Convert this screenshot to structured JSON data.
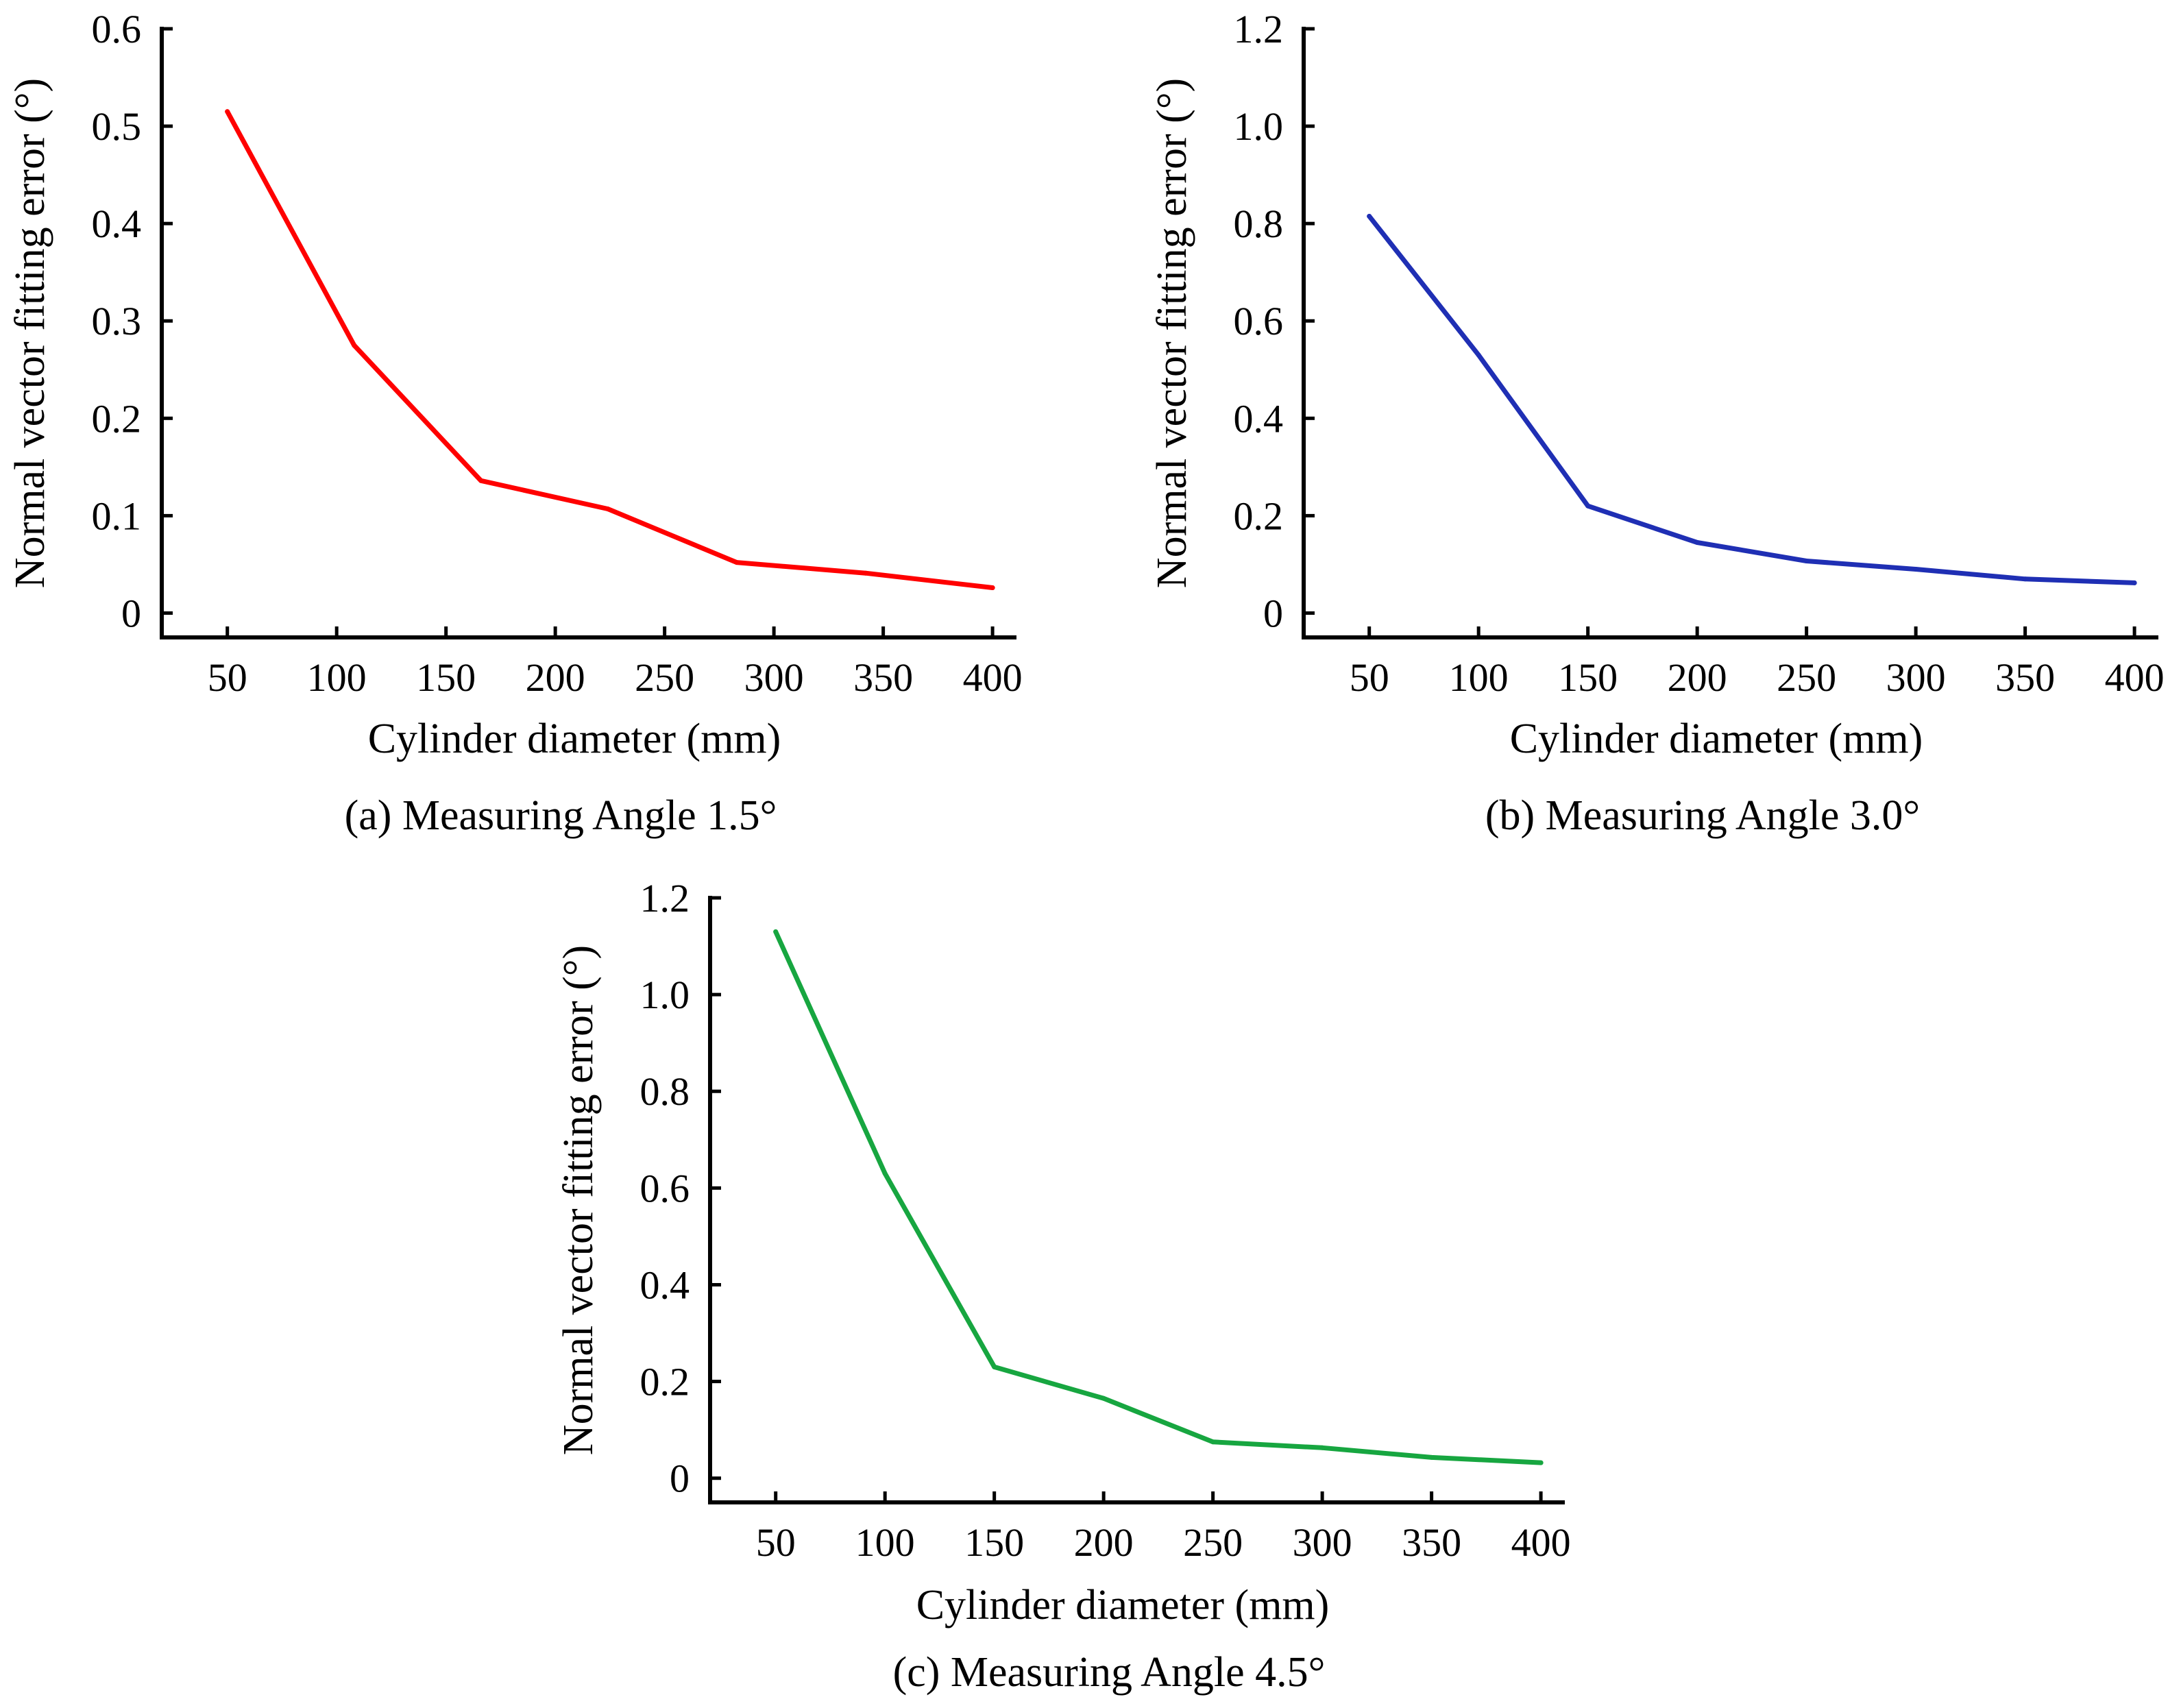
{
  "chart_data": [
    {
      "type": "line",
      "caption": "(a) Measuring Angle 1.5°",
      "xlabel": "Cylinder diameter (mm)",
      "ylabel": "Normal vector fitting error (°)",
      "x": [
        50,
        100,
        150,
        200,
        250,
        300,
        350,
        400
      ],
      "xticks": [
        "50",
        "100",
        "150",
        "200",
        "250",
        "300",
        "350",
        "400"
      ],
      "xlim": [
        20,
        410
      ],
      "yticks": [
        0,
        0.1,
        0.2,
        0.3,
        0.4,
        0.5,
        0.6
      ],
      "ytick_labels": [
        "0",
        "0.1",
        "0.2",
        "0.3",
        "0.4",
        "0.5",
        "0.6"
      ],
      "ylim": [
        -0.025,
        0.6
      ],
      "grid": false,
      "series": [
        {
          "name": "Measuring Angle 1.5°",
          "color": "#ff0000",
          "points": [
            [
              50,
              0.515
            ],
            [
              108,
              0.275
            ],
            [
              166,
              0.136
            ],
            [
              224,
              0.107
            ],
            [
              283,
              0.052
            ],
            [
              342,
              0.041
            ],
            [
              400,
              0.026
            ]
          ]
        }
      ]
    },
    {
      "type": "line",
      "caption": "(b) Measuring Angle 3.0°",
      "xlabel": "Cylinder diameter (mm)",
      "ylabel": "Normal vector fitting error (°)",
      "x": [
        50,
        100,
        150,
        200,
        250,
        300,
        350,
        400
      ],
      "xticks": [
        "50",
        "100",
        "150",
        "200",
        "250",
        "300",
        "350",
        "400"
      ],
      "xlim": [
        20,
        410
      ],
      "yticks": [
        0,
        0.2,
        0.4,
        0.6,
        0.8,
        1.0,
        1.2
      ],
      "ytick_labels": [
        "0",
        "0.2",
        "0.4",
        "0.6",
        "0.8",
        "1.0",
        "1.2"
      ],
      "ylim": [
        -0.05,
        1.2
      ],
      "grid": false,
      "series": [
        {
          "name": "Measuring Angle 3.0°",
          "color": "#1f2fb4",
          "points": [
            [
              50,
              0.815
            ],
            [
              100,
              0.53
            ],
            [
              150,
              0.22
            ],
            [
              200,
              0.145
            ],
            [
              250,
              0.107
            ],
            [
              300,
              0.09
            ],
            [
              350,
              0.07
            ],
            [
              400,
              0.062
            ]
          ]
        }
      ]
    },
    {
      "type": "line",
      "caption": "(c) Measuring Angle 4.5°",
      "xlabel": "Cylinder diameter (mm)",
      "ylabel": "Normal vector fitting error (°)",
      "x": [
        50,
        100,
        150,
        200,
        250,
        300,
        350,
        400
      ],
      "xticks": [
        "50",
        "100",
        "150",
        "200",
        "250",
        "300",
        "350",
        "400"
      ],
      "xlim": [
        20,
        410
      ],
      "yticks": [
        0,
        0.2,
        0.4,
        0.6,
        0.8,
        1.0,
        1.2
      ],
      "ytick_labels": [
        "0",
        "0.2",
        "0.4",
        "0.6",
        "0.8",
        "1.0",
        "1.2"
      ],
      "ylim": [
        -0.05,
        1.2
      ],
      "grid": false,
      "series": [
        {
          "name": "Measuring Angle 4.5°",
          "color": "#17a640",
          "points": [
            [
              50,
              1.13
            ],
            [
              100,
              0.63
            ],
            [
              150,
              0.23
            ],
            [
              200,
              0.165
            ],
            [
              250,
              0.075
            ],
            [
              300,
              0.063
            ],
            [
              350,
              0.043
            ],
            [
              400,
              0.032
            ]
          ]
        }
      ]
    }
  ]
}
